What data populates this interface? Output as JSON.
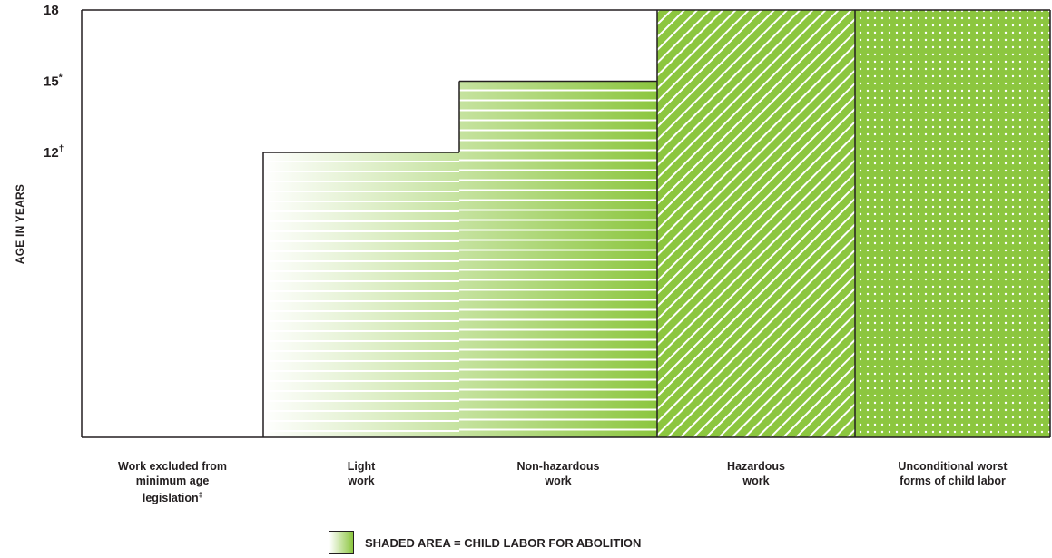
{
  "chart_data": {
    "type": "bar",
    "title": "",
    "ylabel": "AGE IN YEARS",
    "xlabel": "",
    "ylim": [
      0,
      18
    ],
    "yticks": [
      {
        "value": 18,
        "label": "18",
        "mark": ""
      },
      {
        "value": 15,
        "label": "15",
        "mark": "*"
      },
      {
        "value": 12,
        "label": "12",
        "mark": "†"
      }
    ],
    "categories": [
      {
        "lines": [
          "Work excluded from",
          "minimum age",
          "legislation"
        ],
        "mark": "‡"
      },
      {
        "lines": [
          "Light",
          "work"
        ],
        "mark": ""
      },
      {
        "lines": [
          "Non-hazardous",
          "work"
        ],
        "mark": ""
      },
      {
        "lines": [
          "Hazardous",
          "work"
        ],
        "mark": ""
      },
      {
        "lines": [
          "Unconditional worst",
          "forms of child labor"
        ],
        "mark": ""
      }
    ],
    "values": [
      0,
      12,
      15,
      18,
      18
    ],
    "fill_patterns": [
      "none",
      "horizontal-stripes-gradient",
      "horizontal-stripes-gradient",
      "diagonal-stripes",
      "dots"
    ],
    "colors": {
      "green": "#8cc63f",
      "line": "#231f20",
      "stripe": "#ffffff"
    },
    "legend": {
      "label": "SHADED AREA = CHILD LABOR FOR ABOLITION",
      "placement": "bottom"
    },
    "grid": false
  }
}
